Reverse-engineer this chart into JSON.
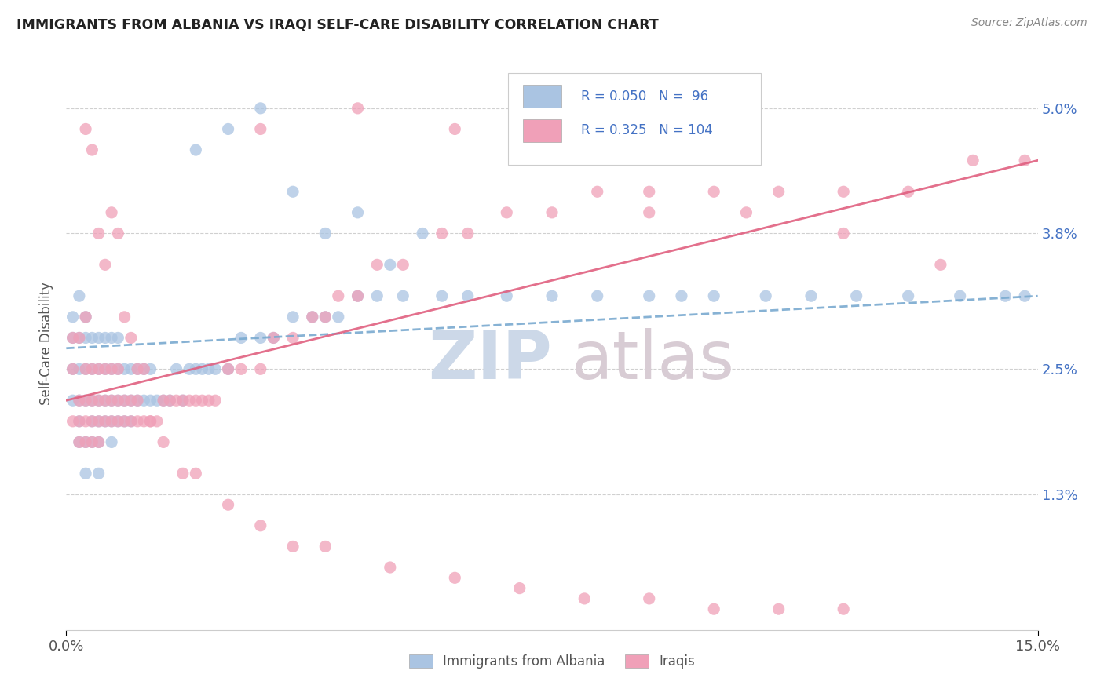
{
  "title": "IMMIGRANTS FROM ALBANIA VS IRAQI SELF-CARE DISABILITY CORRELATION CHART",
  "source": "Source: ZipAtlas.com",
  "ylabel": "Self-Care Disability",
  "y_ticks": [
    0.013,
    0.025,
    0.038,
    0.05
  ],
  "y_tick_labels": [
    "1.3%",
    "2.5%",
    "3.8%",
    "5.0%"
  ],
  "x_lim": [
    0.0,
    0.15
  ],
  "y_lim": [
    0.0,
    0.055
  ],
  "legend_R1": "0.050",
  "legend_N1": "96",
  "legend_R2": "0.325",
  "legend_N2": "104",
  "legend_label1": "Immigrants from Albania",
  "legend_label2": "Iraqis",
  "color_blue": "#aac4e2",
  "color_pink": "#f0a0b8",
  "color_blue_line": "#7aaad0",
  "color_pink_line": "#e06080",
  "color_blue_text": "#4472c4",
  "watermark_zip_color": "#ccd8e8",
  "watermark_atlas_color": "#d8ccd4",
  "albania_x": [
    0.001,
    0.001,
    0.001,
    0.001,
    0.002,
    0.002,
    0.002,
    0.002,
    0.002,
    0.002,
    0.003,
    0.003,
    0.003,
    0.003,
    0.003,
    0.003,
    0.004,
    0.004,
    0.004,
    0.004,
    0.004,
    0.005,
    0.005,
    0.005,
    0.005,
    0.005,
    0.005,
    0.006,
    0.006,
    0.006,
    0.006,
    0.007,
    0.007,
    0.007,
    0.007,
    0.007,
    0.008,
    0.008,
    0.008,
    0.008,
    0.009,
    0.009,
    0.009,
    0.01,
    0.01,
    0.01,
    0.011,
    0.011,
    0.012,
    0.012,
    0.013,
    0.013,
    0.014,
    0.015,
    0.016,
    0.017,
    0.018,
    0.019,
    0.02,
    0.021,
    0.022,
    0.023,
    0.025,
    0.027,
    0.03,
    0.032,
    0.035,
    0.038,
    0.04,
    0.042,
    0.045,
    0.048,
    0.052,
    0.058,
    0.062,
    0.068,
    0.075,
    0.082,
    0.09,
    0.095,
    0.1,
    0.108,
    0.115,
    0.122,
    0.13,
    0.138,
    0.145,
    0.148,
    0.02,
    0.025,
    0.03,
    0.035,
    0.04,
    0.045,
    0.05,
    0.055
  ],
  "albania_y": [
    0.022,
    0.025,
    0.028,
    0.03,
    0.018,
    0.02,
    0.022,
    0.025,
    0.028,
    0.032,
    0.015,
    0.018,
    0.022,
    0.025,
    0.028,
    0.03,
    0.018,
    0.02,
    0.022,
    0.025,
    0.028,
    0.015,
    0.018,
    0.02,
    0.022,
    0.025,
    0.028,
    0.02,
    0.022,
    0.025,
    0.028,
    0.018,
    0.02,
    0.022,
    0.025,
    0.028,
    0.02,
    0.022,
    0.025,
    0.028,
    0.02,
    0.022,
    0.025,
    0.02,
    0.022,
    0.025,
    0.022,
    0.025,
    0.022,
    0.025,
    0.022,
    0.025,
    0.022,
    0.022,
    0.022,
    0.025,
    0.022,
    0.025,
    0.025,
    0.025,
    0.025,
    0.025,
    0.025,
    0.028,
    0.028,
    0.028,
    0.03,
    0.03,
    0.03,
    0.03,
    0.032,
    0.032,
    0.032,
    0.032,
    0.032,
    0.032,
    0.032,
    0.032,
    0.032,
    0.032,
    0.032,
    0.032,
    0.032,
    0.032,
    0.032,
    0.032,
    0.032,
    0.032,
    0.046,
    0.048,
    0.05,
    0.042,
    0.038,
    0.04,
    0.035,
    0.038
  ],
  "iraqi_x": [
    0.001,
    0.001,
    0.001,
    0.002,
    0.002,
    0.002,
    0.002,
    0.003,
    0.003,
    0.003,
    0.003,
    0.003,
    0.004,
    0.004,
    0.004,
    0.004,
    0.005,
    0.005,
    0.005,
    0.005,
    0.006,
    0.006,
    0.006,
    0.007,
    0.007,
    0.007,
    0.008,
    0.008,
    0.008,
    0.009,
    0.009,
    0.01,
    0.01,
    0.011,
    0.011,
    0.012,
    0.013,
    0.014,
    0.015,
    0.016,
    0.017,
    0.018,
    0.019,
    0.02,
    0.021,
    0.022,
    0.023,
    0.025,
    0.027,
    0.03,
    0.032,
    0.035,
    0.038,
    0.04,
    0.042,
    0.045,
    0.048,
    0.052,
    0.058,
    0.062,
    0.068,
    0.075,
    0.082,
    0.09,
    0.1,
    0.11,
    0.12,
    0.13,
    0.14,
    0.148,
    0.003,
    0.004,
    0.005,
    0.006,
    0.007,
    0.008,
    0.009,
    0.01,
    0.011,
    0.012,
    0.013,
    0.015,
    0.018,
    0.02,
    0.025,
    0.03,
    0.035,
    0.04,
    0.05,
    0.06,
    0.07,
    0.08,
    0.09,
    0.1,
    0.11,
    0.12,
    0.03,
    0.045,
    0.06,
    0.075,
    0.09,
    0.105,
    0.12,
    0.135
  ],
  "iraqi_y": [
    0.02,
    0.025,
    0.028,
    0.018,
    0.02,
    0.022,
    0.028,
    0.018,
    0.02,
    0.022,
    0.025,
    0.03,
    0.018,
    0.02,
    0.022,
    0.025,
    0.018,
    0.02,
    0.022,
    0.025,
    0.02,
    0.022,
    0.025,
    0.02,
    0.022,
    0.025,
    0.02,
    0.022,
    0.025,
    0.02,
    0.022,
    0.02,
    0.022,
    0.02,
    0.022,
    0.02,
    0.02,
    0.02,
    0.022,
    0.022,
    0.022,
    0.022,
    0.022,
    0.022,
    0.022,
    0.022,
    0.022,
    0.025,
    0.025,
    0.025,
    0.028,
    0.028,
    0.03,
    0.03,
    0.032,
    0.032,
    0.035,
    0.035,
    0.038,
    0.038,
    0.04,
    0.04,
    0.042,
    0.04,
    0.042,
    0.042,
    0.042,
    0.042,
    0.045,
    0.045,
    0.048,
    0.046,
    0.038,
    0.035,
    0.04,
    0.038,
    0.03,
    0.028,
    0.025,
    0.025,
    0.02,
    0.018,
    0.015,
    0.015,
    0.012,
    0.01,
    0.008,
    0.008,
    0.006,
    0.005,
    0.004,
    0.003,
    0.003,
    0.002,
    0.002,
    0.002,
    0.048,
    0.05,
    0.048,
    0.045,
    0.042,
    0.04,
    0.038,
    0.035
  ]
}
